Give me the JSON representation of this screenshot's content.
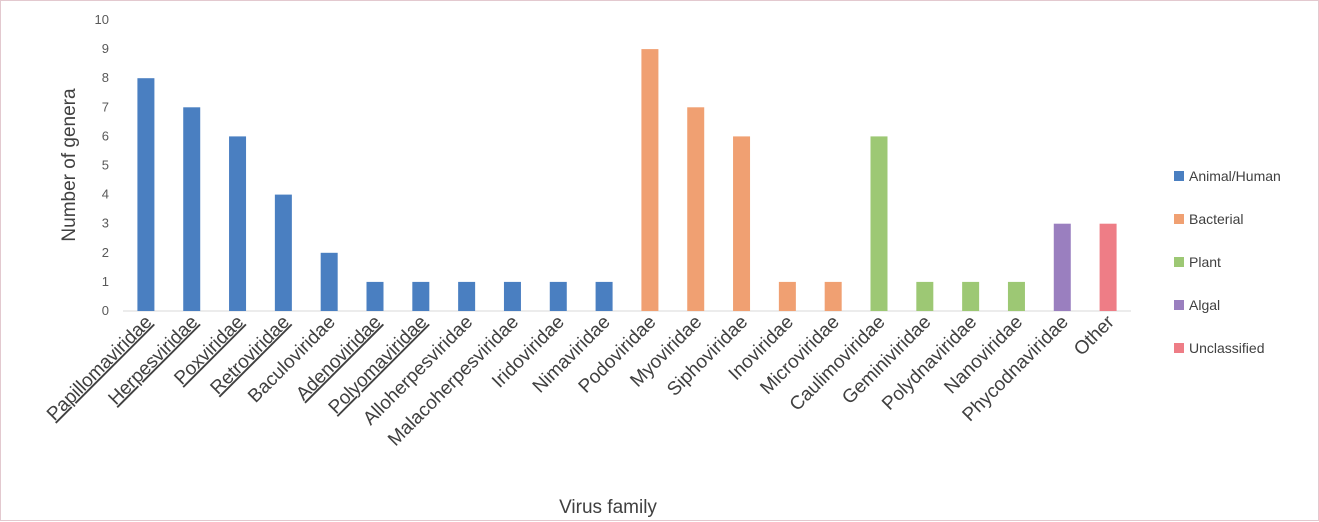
{
  "chart_data": {
    "type": "bar",
    "title": "",
    "xlabel": "Virus family",
    "ylabel": "Number of genera",
    "ylim": [
      0,
      10
    ],
    "yticks": [
      0,
      1,
      2,
      3,
      4,
      5,
      6,
      7,
      8,
      9,
      10
    ],
    "grid": false,
    "legend_position": "right",
    "categories": [
      {
        "label": "Papillomaviridae",
        "value": 8,
        "group": "Animal/Human",
        "underlined": true
      },
      {
        "label": "Herpesviridae",
        "value": 7,
        "group": "Animal/Human",
        "underlined": true
      },
      {
        "label": "Poxviridae",
        "value": 6,
        "group": "Animal/Human",
        "underlined": true
      },
      {
        "label": "Retroviridae",
        "value": 4,
        "group": "Animal/Human",
        "underlined": true
      },
      {
        "label": "Baculoviridae",
        "value": 2,
        "group": "Animal/Human",
        "underlined": false
      },
      {
        "label": "Adenoviridae",
        "value": 1,
        "group": "Animal/Human",
        "underlined": true
      },
      {
        "label": "Polyomaviridae",
        "value": 1,
        "group": "Animal/Human",
        "underlined": true
      },
      {
        "label": "Alloherpesviridae",
        "value": 1,
        "group": "Animal/Human",
        "underlined": false
      },
      {
        "label": "Malacoherpesviridae",
        "value": 1,
        "group": "Animal/Human",
        "underlined": false
      },
      {
        "label": "Iridoviridae",
        "value": 1,
        "group": "Animal/Human",
        "underlined": false
      },
      {
        "label": "Nimaviridae",
        "value": 1,
        "group": "Animal/Human",
        "underlined": false
      },
      {
        "label": "Podoviridae",
        "value": 9,
        "group": "Bacterial",
        "underlined": false
      },
      {
        "label": "Myoviridae",
        "value": 7,
        "group": "Bacterial",
        "underlined": false
      },
      {
        "label": "Siphoviridae",
        "value": 6,
        "group": "Bacterial",
        "underlined": false
      },
      {
        "label": "Inoviridae",
        "value": 1,
        "group": "Bacterial",
        "underlined": false
      },
      {
        "label": "Microviridae",
        "value": 1,
        "group": "Bacterial",
        "underlined": false
      },
      {
        "label": "Caulimoviridae",
        "value": 6,
        "group": "Plant",
        "underlined": false
      },
      {
        "label": "Geminiviridae",
        "value": 1,
        "group": "Plant",
        "underlined": false
      },
      {
        "label": "Polydnaviridae",
        "value": 1,
        "group": "Plant",
        "underlined": false
      },
      {
        "label": "Nanoviridae",
        "value": 1,
        "group": "Plant",
        "underlined": false
      },
      {
        "label": "Phycodnaviridae",
        "value": 3,
        "group": "Algal",
        "underlined": false
      },
      {
        "label": "Other",
        "value": 3,
        "group": "Unclassified",
        "underlined": false
      }
    ],
    "legend": [
      {
        "name": "Animal/Human",
        "color": "#4a7fc1"
      },
      {
        "name": "Bacterial",
        "color": "#f0a072"
      },
      {
        "name": "Plant",
        "color": "#9dc874"
      },
      {
        "name": "Algal",
        "color": "#9a7fbf"
      },
      {
        "name": "Unclassified",
        "color": "#ee7d86"
      }
    ]
  }
}
